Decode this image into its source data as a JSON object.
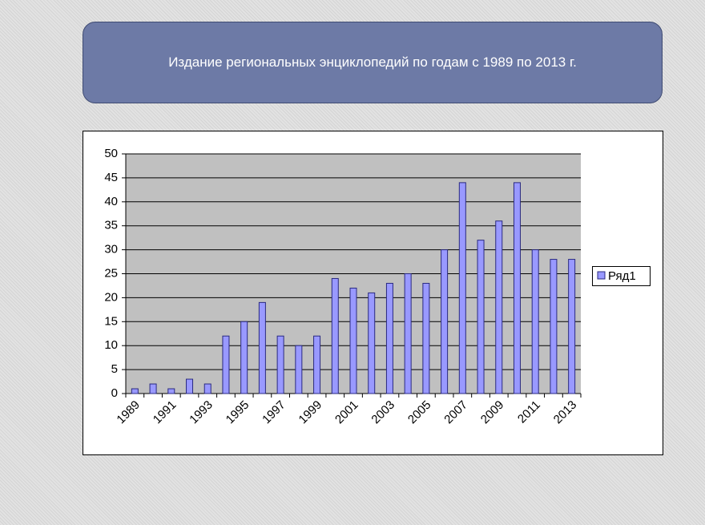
{
  "chart_data": {
    "type": "bar",
    "title": "Издание региональных энциклопедий по годам с 1989 по 2013 г.",
    "categories": [
      "1989",
      null,
      "1991",
      null,
      "1993",
      null,
      "1995",
      null,
      "1997",
      null,
      "1999",
      null,
      "2001",
      null,
      "2003",
      null,
      "2005",
      null,
      "2007",
      null,
      "2009",
      null,
      "2011",
      null,
      "2013"
    ],
    "series": [
      {
        "name": "Ряд1",
        "color": "#9999ff",
        "values": [
          1,
          2,
          1,
          3,
          2,
          12,
          15,
          19,
          12,
          10,
          12,
          24,
          22,
          21,
          23,
          25,
          23,
          30,
          44,
          32,
          36,
          44,
          30,
          28,
          28
        ]
      }
    ],
    "ylim": [
      0,
      50
    ],
    "yticks": [
      0,
      5,
      10,
      15,
      20,
      25,
      30,
      35,
      40,
      45,
      50
    ],
    "grid": true,
    "legend": "right"
  }
}
